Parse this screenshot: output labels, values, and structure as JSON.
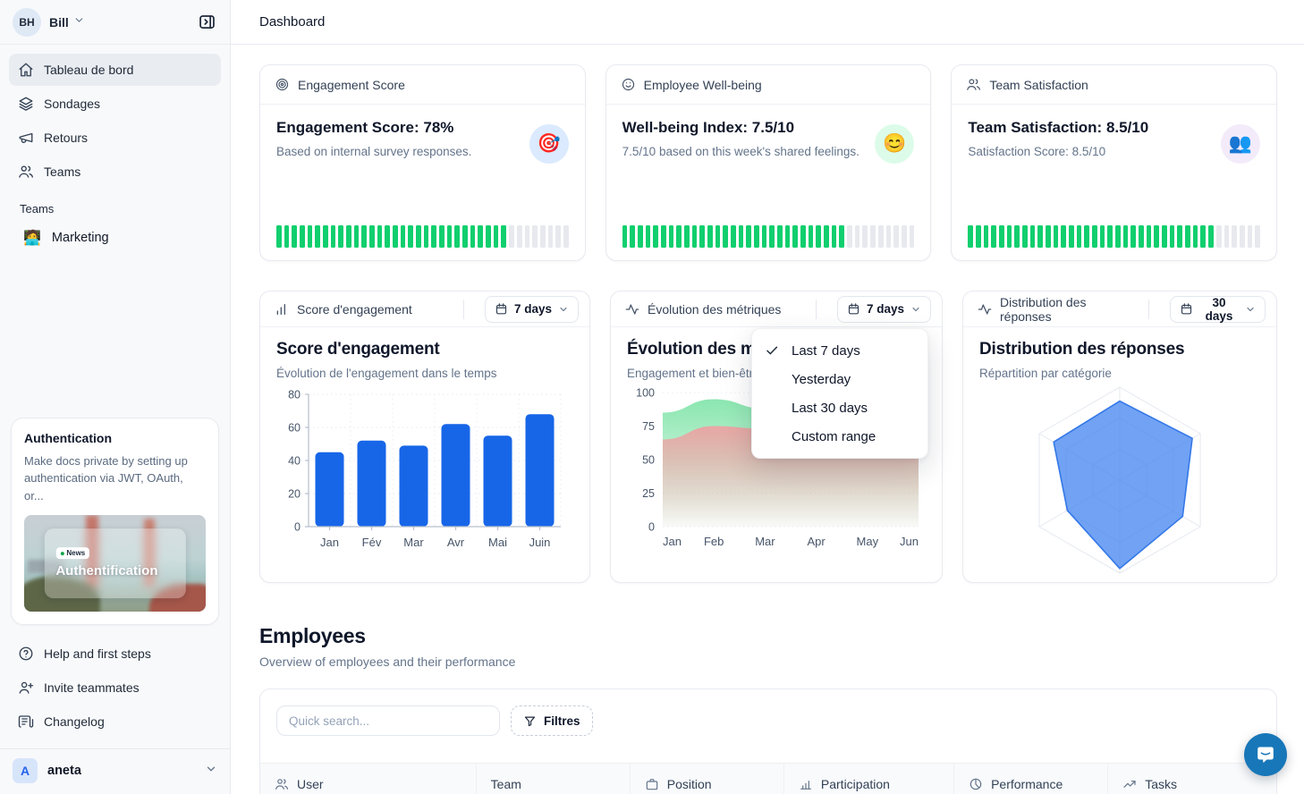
{
  "sidebar": {
    "user": {
      "initials": "BH",
      "name": "Bill"
    },
    "nav": [
      {
        "label": "Tableau de bord",
        "icon": "home-icon",
        "active": true
      },
      {
        "label": "Sondages",
        "icon": "layers-icon",
        "active": false
      },
      {
        "label": "Retours",
        "icon": "megaphone-icon",
        "active": false
      },
      {
        "label": "Teams",
        "icon": "users-icon",
        "active": false
      }
    ],
    "teams_section": {
      "label": "Teams",
      "items": [
        {
          "label": "Marketing",
          "emoji": "🧑‍💻"
        }
      ]
    },
    "auth_card": {
      "title": "Authentication",
      "description": "Make docs private by setting up authentication via JWT, OAuth, or...",
      "image_badge": "News",
      "image_title": "Authentification"
    },
    "footer_nav": [
      {
        "label": "Help and first steps",
        "icon": "help-icon"
      },
      {
        "label": "Invite teammates",
        "icon": "user-plus-icon"
      },
      {
        "label": "Changelog",
        "icon": "changelog-icon"
      }
    ],
    "workspace": {
      "initial": "A",
      "name": "aneta"
    }
  },
  "topbar": {
    "title": "Dashboard"
  },
  "stat_cards": [
    {
      "header": "Engagement Score",
      "headline": "Engagement Score: 78%",
      "subtext": "Based on internal survey responses.",
      "emoji": "🎯",
      "emoji_bg": "#dbeafe",
      "progress_pct": 78
    },
    {
      "header": "Employee Well-being",
      "headline": "Well-being Index: 7.5/10",
      "subtext": "7.5/10 based on this week's shared feelings.",
      "emoji": "😊",
      "emoji_bg": "#dcfce9",
      "progress_pct": 75
    },
    {
      "header": "Team Satisfaction",
      "headline": "Team Satisfaction: 8.5/10",
      "subtext": "Satisfaction Score: 8.5/10",
      "emoji": "👥",
      "emoji_bg": "#f3ebfa",
      "progress_pct": 85
    }
  ],
  "chart_cards": [
    {
      "header": "Score d'engagement",
      "range_label": "7 days",
      "title": "Score d'engagement",
      "subtitle": "Évolution de l'engagement dans le temps"
    },
    {
      "header": "Évolution des métriques",
      "range_label": "7 days",
      "title": "Évolution des métriques",
      "subtitle": "Engagement et bien-être"
    },
    {
      "header": "Distribution des réponses",
      "range_label": "30 days",
      "title": "Distribution des réponses",
      "subtitle": "Répartition par catégorie"
    }
  ],
  "range_menu": {
    "items": [
      {
        "label": "Last 7 days",
        "checked": true
      },
      {
        "label": "Yesterday",
        "checked": false
      },
      {
        "label": "Last 30 days",
        "checked": false
      },
      {
        "label": "Custom range",
        "checked": false
      }
    ]
  },
  "chart_data": [
    {
      "type": "bar",
      "title": "Score d'engagement",
      "categories": [
        "Jan",
        "Fév",
        "Mar",
        "Avr",
        "Mai",
        "Juin"
      ],
      "values": [
        45,
        52,
        49,
        62,
        55,
        68
      ],
      "ylim": [
        0,
        80
      ],
      "yticks": [
        80,
        60,
        40,
        20,
        0
      ],
      "bar_color": "#1766e8",
      "grid": "dotted"
    },
    {
      "type": "area",
      "title": "Évolution des métriques",
      "x": [
        "Jan",
        "Feb",
        "Mar",
        "Apr",
        "May",
        "Jun"
      ],
      "series": [
        {
          "name": "engagement",
          "color": "#84e5ab",
          "values": [
            85,
            95,
            88,
            68,
            72,
            75
          ]
        },
        {
          "name": "bien-être",
          "color": "#eca3a3",
          "values": [
            65,
            75,
            73,
            60,
            65,
            63
          ]
        }
      ],
      "ylim": [
        0,
        100
      ],
      "yticks": [
        100,
        75,
        50,
        25,
        0
      ],
      "grid": "dotted"
    },
    {
      "type": "radar",
      "title": "Distribution des réponses",
      "axes": 6,
      "levels": 3,
      "max": 1,
      "values": [
        0.85,
        0.9,
        0.78,
        0.95,
        0.65,
        0.82
      ],
      "fill": "#4d8bf0",
      "stroke": "#3478e8"
    }
  ],
  "employees": {
    "title": "Employees",
    "subtitle": "Overview of employees and their performance",
    "search_placeholder": "Quick search...",
    "filter_label": "Filtres",
    "columns": [
      {
        "label": "User",
        "icon": "users-icon"
      },
      {
        "label": "Team",
        "icon": ""
      },
      {
        "label": "Position",
        "icon": "briefcase-icon"
      },
      {
        "label": "Participation",
        "icon": "bar-chart-icon"
      },
      {
        "label": "Performance",
        "icon": "pie-chart-icon"
      },
      {
        "label": "Tasks",
        "icon": "trending-up-icon"
      }
    ]
  },
  "theme": {
    "accent_green": "#10cf6e",
    "bar_blue": "#1766e8",
    "chat_blue": "#1877b8"
  }
}
